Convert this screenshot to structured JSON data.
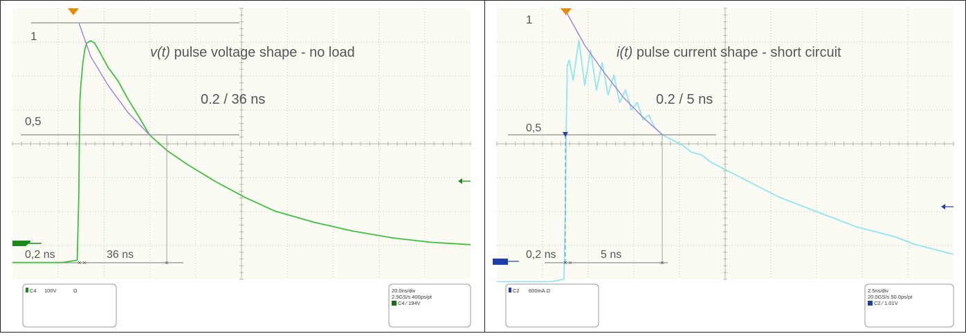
{
  "colors": {
    "screen_bg": "#fbfbf3",
    "grid": "#c6c6bc",
    "ref_line": "#8c8c8c",
    "trace_voltage": "#3fbf3f",
    "trace_current": "#8ee6ee",
    "fit_curve": "#9a7fe0",
    "ch4_marker": "#1a8a1a",
    "ch2_marker": "#1e3ea8",
    "trigger_marker": "#e08a10",
    "label_text": "#555555"
  },
  "panels": [
    {
      "id": "voltage",
      "title_var": "v(t)",
      "title_rest": " pulse voltage shape - no load",
      "ratio": "0.2 / 36 ns",
      "level_1": "1",
      "level_05": "0,5",
      "rise_label": "0,2 ns",
      "decay_label": "36 ns",
      "info_left": {
        "channel": "C4",
        "scale": "100V",
        "extra": "Ω"
      },
      "info_right": {
        "line1": "20.0ns/div",
        "line2": "2.5GS/s   400ps/pt",
        "line3": "C4 ∕ 194V"
      }
    },
    {
      "id": "current",
      "title_var": "i(t)",
      "title_rest": " pulse current shape - short circuit",
      "ratio": "0.2 / 5 ns",
      "level_1": "1",
      "level_05": "0,5",
      "rise_label": "0,2 ns",
      "decay_label": "5 ns",
      "info_left": {
        "channel": "C2",
        "scale": "600mA Ω",
        "extra": ""
      },
      "info_right": {
        "line1": "2.5ns/div",
        "line2": "20.0GS/s   50.0ps/pt",
        "line3": "C2 ∕ 1.01V"
      }
    }
  ],
  "chart_data": [
    {
      "type": "line",
      "title": "v(t) pulse voltage shape - no load",
      "xlabel": "",
      "ylabel": "",
      "time_per_div": "20.0ns/div",
      "xlim_ns": [
        -20,
        200
      ],
      "ylim_normalized": [
        -0.2,
        1.05
      ],
      "grid": true,
      "series": [
        {
          "x": [
            -20,
            -5,
            -0.5,
            0,
            0.2,
            0.5,
            1,
            2,
            3,
            4,
            6,
            8,
            10,
            15,
            20,
            25,
            30,
            36,
            45,
            55,
            70,
            85,
            100,
            120,
            140,
            160,
            180,
            200
          ],
          "y": [
            -0.07,
            -0.07,
            -0.06,
            0.25,
            0.45,
            0.65,
            0.72,
            0.82,
            0.88,
            0.91,
            0.92,
            0.91,
            0.88,
            0.8,
            0.74,
            0.66,
            0.59,
            0.5,
            0.43,
            0.37,
            0.29,
            0.22,
            0.16,
            0.11,
            0.07,
            0.04,
            0.02,
            0.01
          ]
        },
        {
          "x": [
            0,
            6,
            15,
            25,
            36
          ],
          "y": [
            1.0,
            0.85,
            0.72,
            0.6,
            0.5
          ]
        }
      ],
      "annotations": {
        "rise_time": "0,2 ns",
        "decay_time_to_half": "36 ns",
        "ratio": "0.2 / 36 ns",
        "levels": [
          "1",
          "0,5"
        ]
      }
    },
    {
      "type": "line",
      "title": "i(t) pulse current shape - short circuit",
      "xlabel": "",
      "ylabel": "",
      "time_per_div": "2.5ns/div",
      "xlim_ns": [
        -2.5,
        20
      ],
      "ylim_normalized": [
        -0.2,
        1.05
      ],
      "grid": true,
      "series": [
        {
          "x": [
            -2.5,
            -0.5,
            -0.05,
            0,
            0.05,
            0.1,
            0.2,
            0.4,
            0.7,
            1.0,
            1.3,
            1.6,
            1.9,
            2.2,
            2.5,
            2.8,
            3.1,
            3.4,
            3.7,
            4.0,
            4.3,
            4.6,
            5.0,
            5.5,
            6.0,
            6.5,
            7.0,
            7.5,
            8.0,
            9,
            10,
            11,
            12,
            13,
            14,
            15,
            16,
            17,
            18,
            19,
            20
          ],
          "y": [
            -0.09,
            -0.09,
            -0.08,
            0.2,
            0.55,
            0.78,
            0.8,
            0.72,
            0.88,
            0.7,
            0.84,
            0.68,
            0.79,
            0.66,
            0.74,
            0.63,
            0.68,
            0.6,
            0.63,
            0.56,
            0.58,
            0.53,
            0.5,
            0.48,
            0.46,
            0.43,
            0.42,
            0.39,
            0.37,
            0.33,
            0.29,
            0.25,
            0.22,
            0.19,
            0.16,
            0.13,
            0.11,
            0.09,
            0.06,
            0.04,
            0.02
          ]
        },
        {
          "x": [
            0,
            1,
            2,
            3,
            4,
            5
          ],
          "y": [
            1.0,
            0.86,
            0.75,
            0.65,
            0.57,
            0.5
          ]
        }
      ],
      "annotations": {
        "rise_time": "0,2 ns",
        "decay_time_to_half": "5 ns",
        "ratio": "0.2 / 5 ns",
        "levels": [
          "1",
          "0,5"
        ]
      }
    }
  ]
}
